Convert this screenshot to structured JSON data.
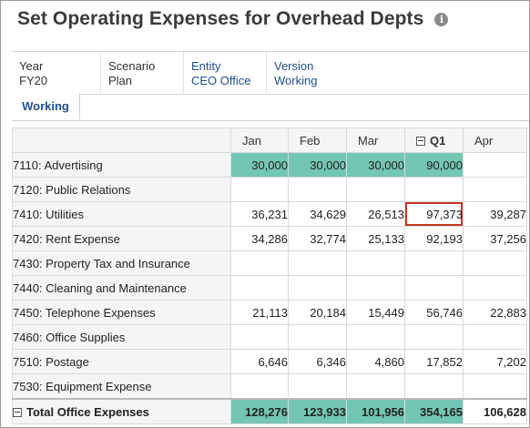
{
  "title": "Set Operating Expenses for Overhead Depts",
  "info_icon": "i",
  "pov": [
    {
      "label": "Year",
      "value": "FY20",
      "link": false
    },
    {
      "label": "Scenario",
      "value": "Plan",
      "link": false
    },
    {
      "label": "Entity",
      "value": "CEO Office",
      "link": true
    },
    {
      "label": "Version",
      "value": "Working",
      "link": true
    }
  ],
  "tabs": [
    {
      "label": "Working",
      "active": true
    }
  ],
  "columns": [
    "Jan",
    "Feb",
    "Mar",
    "Q1",
    "Apr"
  ],
  "rows": [
    {
      "label": "7110: Advertising",
      "values": [
        "30,000",
        "30,000",
        "30,000",
        "90,000",
        ""
      ]
    },
    {
      "label": "7120: Public Relations",
      "values": [
        "",
        "",
        "",
        "",
        ""
      ]
    },
    {
      "label": "7410: Utilities",
      "values": [
        "36,231",
        "34,629",
        "26,513",
        "97,373",
        "39,287"
      ]
    },
    {
      "label": "7420: Rent Expense",
      "values": [
        "34,286",
        "32,774",
        "25,133",
        "92,193",
        "37,256"
      ]
    },
    {
      "label": "7430: Property Tax and Insurance",
      "values": [
        "",
        "",
        "",
        "",
        ""
      ]
    },
    {
      "label": "7440: Cleaning and Maintenance",
      "values": [
        "",
        "",
        "",
        "",
        ""
      ]
    },
    {
      "label": "7450: Telephone Expenses",
      "values": [
        "21,113",
        "20,184",
        "15,449",
        "56,746",
        "22,883"
      ]
    },
    {
      "label": "7460: Office Supplies",
      "values": [
        "",
        "",
        "",
        "",
        ""
      ]
    },
    {
      "label": "7510: Postage",
      "values": [
        "6,646",
        "6,346",
        "4,860",
        "17,852",
        "7,202"
      ]
    },
    {
      "label": "7530: Equipment Expense",
      "values": [
        "",
        "",
        "",
        "",
        ""
      ]
    }
  ],
  "total": {
    "label": "Total Office Expenses",
    "values": [
      "128,276",
      "123,933",
      "101,956",
      "354,165",
      "106,628"
    ]
  },
  "colors": {
    "highlight": "#74c6b4",
    "selected_border": "#c0392b",
    "link": "#1f4f8f"
  }
}
